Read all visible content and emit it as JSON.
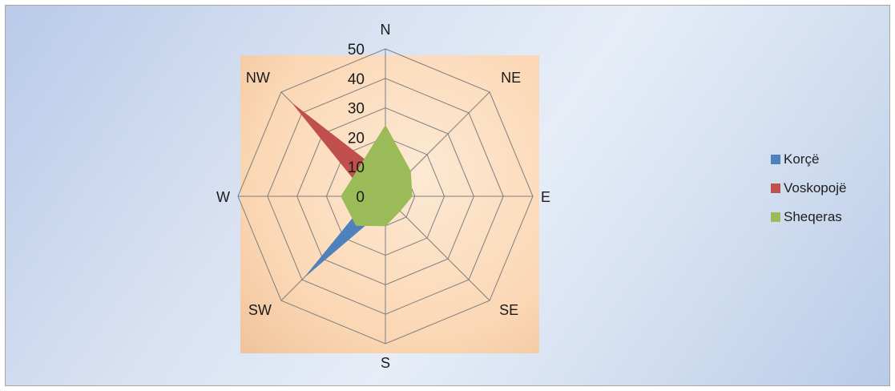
{
  "chart_data": {
    "type": "radar",
    "title": "",
    "categories": [
      "N",
      "NE",
      "E",
      "SE",
      "S",
      "SW",
      "W",
      "NW"
    ],
    "rlim": [
      0,
      50
    ],
    "ticks": [
      "0",
      "10",
      "20",
      "30",
      "40",
      "50"
    ],
    "tick_values": [
      0,
      10,
      20,
      30,
      40,
      50
    ],
    "grid": true,
    "legend_position": "right",
    "series": [
      {
        "name": "Korçë",
        "color": "#4f81bd",
        "values": [
          5,
          3,
          4,
          2,
          4,
          38,
          5,
          6
        ]
      },
      {
        "name": "Voskopojë",
        "color": "#c0504d",
        "values": [
          7,
          3,
          3,
          2,
          3,
          4,
          6,
          44
        ]
      },
      {
        "name": "Sheqeras",
        "color": "#9bbb59",
        "values": [
          24,
          12,
          9,
          7,
          10,
          14,
          15,
          13
        ]
      }
    ]
  }
}
